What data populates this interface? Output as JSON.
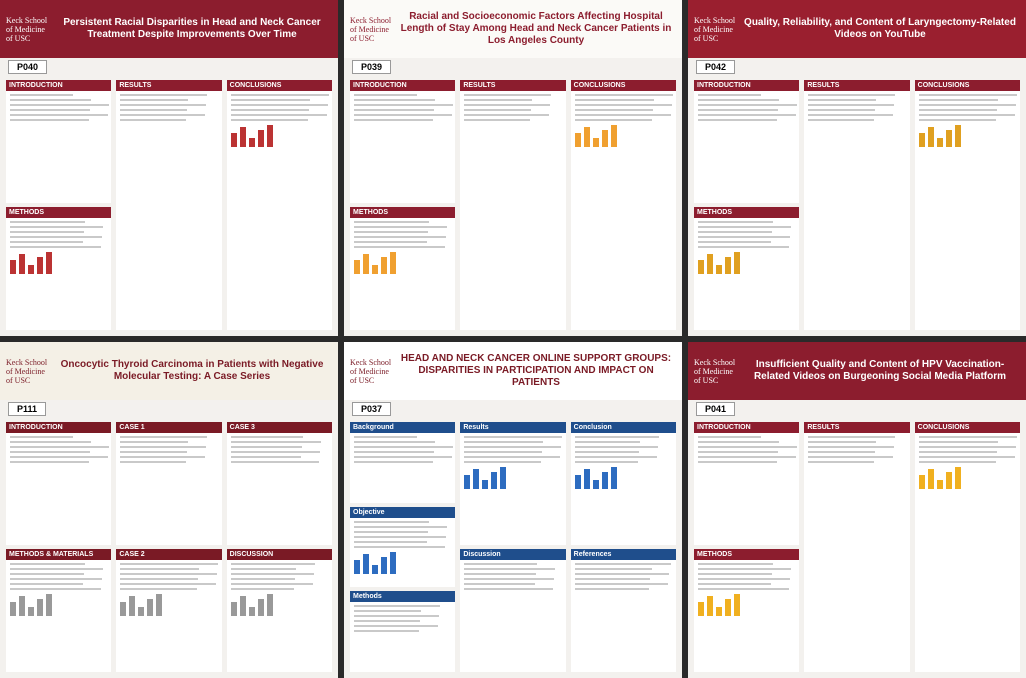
{
  "posters": [
    {
      "number": "P040",
      "school": "Keck School of Medicine of USC",
      "title": "Persistent Racial Disparities in Head and Neck Cancer Treatment Despite Improvements Over Time",
      "sections": [
        "INTRODUCTION",
        "METHODS",
        "RESULTS",
        "CONCLUSIONS"
      ]
    },
    {
      "number": "P039",
      "school": "Keck School of Medicine of USC",
      "title": "Racial and Socioeconomic Factors Affecting Hospital Length of Stay Among Head and Neck Cancer Patients in Los Angeles County",
      "sections": [
        "INTRODUCTION",
        "METHODS",
        "RESULTS",
        "CONCLUSIONS"
      ]
    },
    {
      "number": "P042",
      "school": "Keck School of Medicine of USC",
      "title": "Quality, Reliability, and Content of Laryngectomy-Related Videos on YouTube",
      "sections": [
        "INTRODUCTION",
        "METHODS",
        "RESULTS",
        "CONCLUSIONS"
      ]
    },
    {
      "number": "P111",
      "school": "Keck School of Medicine of USC",
      "title": "Oncocytic Thyroid Carcinoma in Patients with Negative Molecular Testing: A Case Series",
      "sections": [
        "INTRODUCTION",
        "METHODS & MATERIALS",
        "CASE 1",
        "CASE 2",
        "CASE 3",
        "DISCUSSION"
      ]
    },
    {
      "number": "P037",
      "school": "Keck School of Medicine of USC",
      "title": "HEAD AND NECK CANCER ONLINE SUPPORT GROUPS: DISPARITIES IN PARTICIPATION AND IMPACT ON PATIENTS",
      "sections": [
        "Background",
        "Objective",
        "Methods",
        "Results",
        "Discussion",
        "Conclusion",
        "References"
      ]
    },
    {
      "number": "P041",
      "school": "Keck School of Medicine of USC",
      "title": "Insufficient Quality and Content of HPV Vaccination-Related Videos on Burgeoning Social Media Platform",
      "sections": [
        "INTRODUCTION",
        "METHODS",
        "RESULTS",
        "CONCLUSIONS"
      ]
    }
  ]
}
